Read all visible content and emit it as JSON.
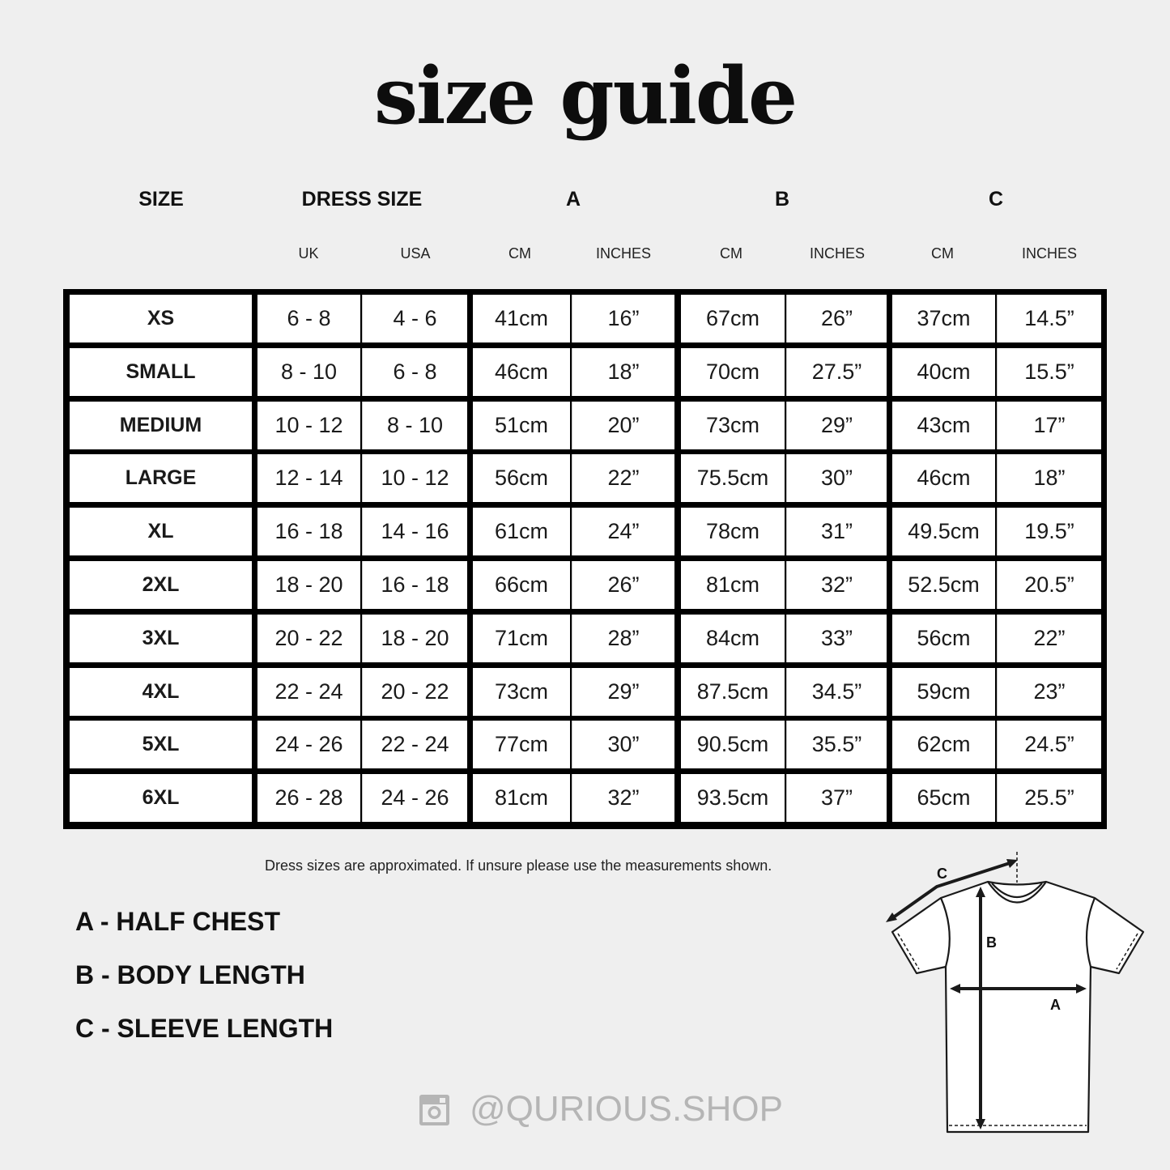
{
  "title": "size guide",
  "headers": {
    "size": "SIZE",
    "dress_size": "DRESS SIZE",
    "a": "A",
    "b": "B",
    "c": "C"
  },
  "subheaders": [
    "UK",
    "USA",
    "CM",
    "INCHES",
    "CM",
    "INCHES",
    "CM",
    "INCHES"
  ],
  "rows": [
    [
      "XS",
      "6 - 8",
      "4 - 6",
      "41cm",
      "16”",
      "67cm",
      "26”",
      "37cm",
      "14.5”"
    ],
    [
      "SMALL",
      "8 - 10",
      "6 - 8",
      "46cm",
      "18”",
      "70cm",
      "27.5”",
      "40cm",
      "15.5”"
    ],
    [
      "MEDIUM",
      "10 - 12",
      "8 - 10",
      "51cm",
      "20”",
      "73cm",
      "29”",
      "43cm",
      "17”"
    ],
    [
      "LARGE",
      "12 - 14",
      "10 - 12",
      "56cm",
      "22”",
      "75.5cm",
      "30”",
      "46cm",
      "18”"
    ],
    [
      "XL",
      "16 - 18",
      "14 - 16",
      "61cm",
      "24”",
      "78cm",
      "31”",
      "49.5cm",
      "19.5”"
    ],
    [
      "2XL",
      "18 - 20",
      "16 - 18",
      "66cm",
      "26”",
      "81cm",
      "32”",
      "52.5cm",
      "20.5”"
    ],
    [
      "3XL",
      "20 - 22",
      "18 - 20",
      "71cm",
      "28”",
      "84cm",
      "33”",
      "56cm",
      "22”"
    ],
    [
      "4XL",
      "22 - 24",
      "20 - 22",
      "73cm",
      "29”",
      "87.5cm",
      "34.5”",
      "59cm",
      "23”"
    ],
    [
      "5XL",
      "24 - 26",
      "22 - 24",
      "77cm",
      "30”",
      "90.5cm",
      "35.5”",
      "62cm",
      "24.5”"
    ],
    [
      "6XL",
      "26 - 28",
      "24 - 26",
      "81cm",
      "32”",
      "93.5cm",
      "37”",
      "65cm",
      "25.5”"
    ]
  ],
  "note": "Dress sizes are approximated. If unsure please use the measurements shown.",
  "legend": [
    "A - HALF CHEST",
    "B - BODY LENGTH",
    "C - SLEEVE LENGTH"
  ],
  "diagram": {
    "label_a": "A",
    "label_b": "B",
    "label_c": "C"
  },
  "footer": {
    "icon": "instagram-icon",
    "handle": "@QURIOUS.SHOP"
  }
}
